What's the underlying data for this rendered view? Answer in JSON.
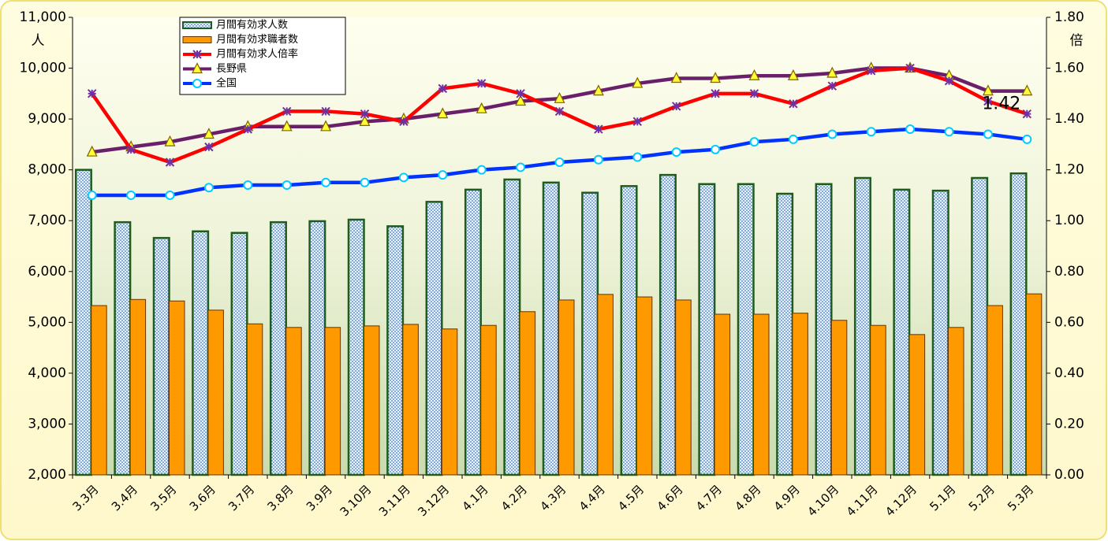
{
  "chart_data": {
    "type": "bar",
    "categories": [
      "3.3月",
      "3.4月",
      "3.5月",
      "3.6月",
      "3.7月",
      "3.8月",
      "3.9月",
      "3.10月",
      "3.11月",
      "3.12月",
      "4.1月",
      "4.2月",
      "4.3月",
      "4.4月",
      "4.5月",
      "4.6月",
      "4.7月",
      "4.8月",
      "4.9月",
      "4.10月",
      "4.11月",
      "4.12月",
      "5.1月",
      "5.2月",
      "5.3月"
    ],
    "y_label": "人",
    "y2_label": "倍",
    "ylim": [
      2000,
      11000
    ],
    "yticks": [
      {
        "value": 2000,
        "label": "2,000"
      },
      {
        "value": 3000,
        "label": "3,000"
      },
      {
        "value": 4000,
        "label": "4,000"
      },
      {
        "value": 5000,
        "label": "5,000"
      },
      {
        "value": 6000,
        "label": "6,000"
      },
      {
        "value": 7000,
        "label": "7,000"
      },
      {
        "value": 8000,
        "label": "8,000"
      },
      {
        "value": 9000,
        "label": "9,000"
      },
      {
        "value": 10000,
        "label": "10,000"
      },
      {
        "value": 11000,
        "label": "11,000"
      }
    ],
    "y2lim": [
      0,
      1.8
    ],
    "y2ticks": [
      {
        "value": 0,
        "label": "0.00"
      },
      {
        "value": 0.2,
        "label": "0.20"
      },
      {
        "value": 0.4,
        "label": "0.40"
      },
      {
        "value": 0.6,
        "label": "0.60"
      },
      {
        "value": 0.8,
        "label": "0.80"
      },
      {
        "value": 1.0,
        "label": "1.00"
      },
      {
        "value": 1.2,
        "label": "1.20"
      },
      {
        "value": 1.4,
        "label": "1.40"
      },
      {
        "value": 1.6,
        "label": "1.60"
      },
      {
        "value": 1.8,
        "label": "1.80"
      }
    ],
    "legend": "top-left",
    "series": [
      {
        "name": "月間有効求人数",
        "type": "bar",
        "color": "#1f5c1f",
        "marker_color": "#8fb8e8",
        "values": [
          8000,
          6970,
          6660,
          6790,
          6760,
          6970,
          6990,
          7020,
          6890,
          7370,
          7610,
          7810,
          7750,
          7550,
          7680,
          7900,
          7720,
          7720,
          7530,
          7720,
          7840,
          7610,
          7590,
          7840,
          7930
        ]
      },
      {
        "name": "月間有効求職者数",
        "type": "bar",
        "color": "#663300",
        "marker_color": "#ff9900",
        "values": [
          5330,
          5450,
          5420,
          5240,
          4970,
          4900,
          4900,
          4930,
          4960,
          4870,
          4940,
          5210,
          5440,
          5550,
          5500,
          5440,
          5160,
          5160,
          5180,
          5040,
          4940,
          4760,
          4900,
          5330,
          5560
        ]
      },
      {
        "name": "月間有効求人倍率",
        "type": "line",
        "axis": "y2",
        "color": "#ff0000",
        "marker_color": "#7030a0",
        "marker": "star",
        "values": [
          1.5,
          1.28,
          1.23,
          1.29,
          1.36,
          1.43,
          1.43,
          1.42,
          1.39,
          1.52,
          1.54,
          1.5,
          1.43,
          1.36,
          1.39,
          1.45,
          1.5,
          1.5,
          1.46,
          1.53,
          1.59,
          1.6,
          1.55,
          1.47,
          1.42
        ]
      },
      {
        "name": "長野県",
        "type": "line",
        "axis": "y2",
        "color": "#6a1f6a",
        "marker_color": "#ffff33",
        "marker": "triangle",
        "values": [
          1.27,
          1.29,
          1.31,
          1.34,
          1.37,
          1.37,
          1.37,
          1.39,
          1.4,
          1.42,
          1.44,
          1.47,
          1.48,
          1.51,
          1.54,
          1.56,
          1.56,
          1.57,
          1.57,
          1.58,
          1.6,
          1.6,
          1.57,
          1.51,
          1.51
        ]
      },
      {
        "name": "全国",
        "type": "line",
        "axis": "y2",
        "color": "#0033ff",
        "marker_color": "#00ccff",
        "marker": "circle",
        "values": [
          1.1,
          1.1,
          1.1,
          1.13,
          1.14,
          1.14,
          1.15,
          1.15,
          1.17,
          1.18,
          1.2,
          1.21,
          1.23,
          1.24,
          1.25,
          1.27,
          1.28,
          1.31,
          1.32,
          1.34,
          1.35,
          1.36,
          1.35,
          1.34,
          1.32
        ]
      }
    ]
  }
}
